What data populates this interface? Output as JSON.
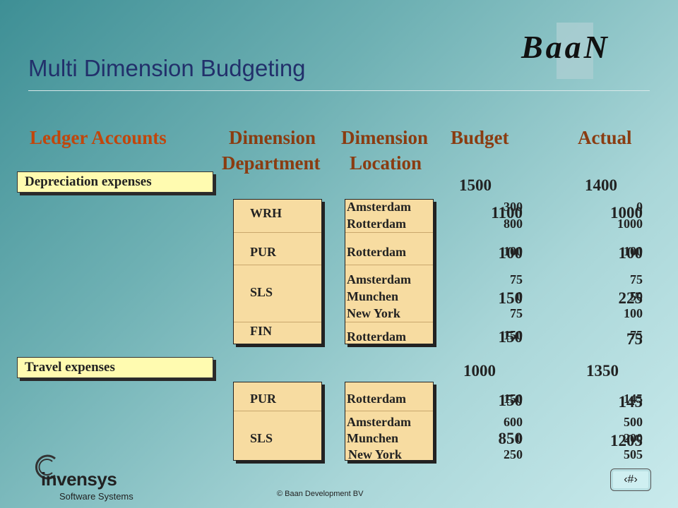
{
  "title": "Multi Dimension Budgeting",
  "logo": "BaaN",
  "headers": {
    "ledger": "Ledger Accounts",
    "dim1": "Dimension",
    "dim1_sub": "Department",
    "dim2": "Dimension",
    "dim2_sub": "Location",
    "budget": "Budget",
    "actual": "Actual"
  },
  "sections": [
    {
      "label": "Depreciation expenses",
      "budget": "1500",
      "actual": "1400"
    },
    {
      "label": "Travel expenses",
      "budget": "1000",
      "actual": "1350"
    }
  ],
  "dep": {
    "departments": [
      "WRH",
      "PUR",
      "SLS",
      "FIN"
    ],
    "locations": [
      "Amsterdam",
      "Rotterdam",
      "Rotterdam",
      "Amsterdam",
      "Munchen",
      "New York",
      "Rotterdam"
    ],
    "budget_big": [
      "1100",
      "100",
      "150",
      "150"
    ],
    "actual_big": [
      "1000",
      "100",
      "225",
      "75"
    ],
    "budget_small": [
      "300",
      "800",
      "100",
      "75",
      "0",
      "75",
      "150"
    ],
    "actual_small": [
      "0",
      "1000",
      "100",
      "75",
      "50",
      "100",
      "75"
    ]
  },
  "trav": {
    "departments": [
      "PUR",
      "SLS"
    ],
    "locations": [
      "Rotterdam",
      "Amsterdam",
      "Munchen",
      "New York"
    ],
    "budget_big": [
      "150",
      "850"
    ],
    "actual_big": [
      "145",
      "1205"
    ],
    "budget_small": [
      "150",
      "600",
      "0",
      "250"
    ],
    "actual_small": [
      "145",
      "500",
      "200",
      "505"
    ]
  },
  "footer": {
    "copyright": "© Baan Development BV",
    "company": "invensys",
    "company_sub": "Software Systems",
    "nav": "‹#›"
  }
}
